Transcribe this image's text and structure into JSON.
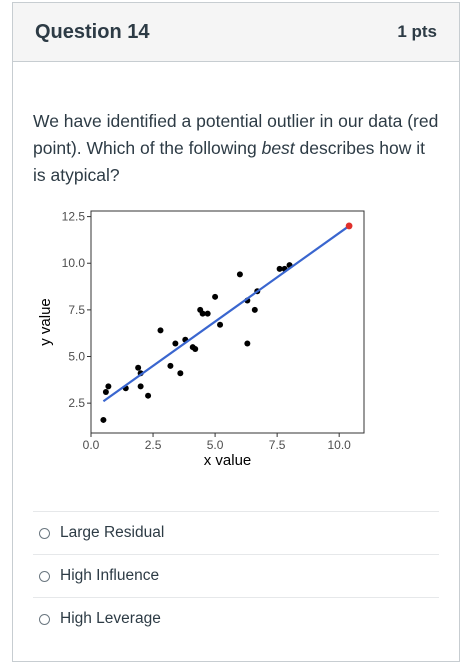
{
  "question": {
    "title": "Question 14",
    "points": "1 pts",
    "text_before": "We have identified a potential outlier in our data (red point). Which of the following ",
    "text_emphasis": "best",
    "text_after": " describes how it is atypical?"
  },
  "answers": [
    {
      "label": "Large Residual"
    },
    {
      "label": "High Influence"
    },
    {
      "label": "High Leverage"
    }
  ],
  "chart_data": {
    "type": "scatter",
    "xlabel": "x value",
    "ylabel": "y value",
    "xlim": [
      0,
      11
    ],
    "ylim": [
      0.9,
      12.8
    ],
    "xticks": [
      "0.0",
      "2.5",
      "5.0",
      "7.5",
      "10.0"
    ],
    "xtick_values": [
      0,
      2.5,
      5,
      7.5,
      10
    ],
    "yticks": [
      "2.5",
      "5.0",
      "7.5",
      "10.0",
      "12.5"
    ],
    "ytick_values": [
      2.5,
      5,
      7.5,
      10,
      12.5
    ],
    "grid": false,
    "points": [
      {
        "x": 0.5,
        "y": 1.6
      },
      {
        "x": 0.6,
        "y": 3.1
      },
      {
        "x": 0.7,
        "y": 3.4
      },
      {
        "x": 1.4,
        "y": 3.3
      },
      {
        "x": 1.9,
        "y": 4.4
      },
      {
        "x": 2.0,
        "y": 3.4
      },
      {
        "x": 2.0,
        "y": 4.1
      },
      {
        "x": 2.3,
        "y": 2.9
      },
      {
        "x": 2.8,
        "y": 6.4
      },
      {
        "x": 3.2,
        "y": 4.5
      },
      {
        "x": 3.4,
        "y": 5.7
      },
      {
        "x": 3.6,
        "y": 4.1
      },
      {
        "x": 3.8,
        "y": 5.9
      },
      {
        "x": 4.1,
        "y": 5.5
      },
      {
        "x": 4.2,
        "y": 5.4
      },
      {
        "x": 4.4,
        "y": 7.5
      },
      {
        "x": 4.5,
        "y": 7.3
      },
      {
        "x": 4.7,
        "y": 7.3
      },
      {
        "x": 5.0,
        "y": 8.2
      },
      {
        "x": 5.2,
        "y": 6.7
      },
      {
        "x": 6.0,
        "y": 9.4
      },
      {
        "x": 6.3,
        "y": 8.0
      },
      {
        "x": 6.3,
        "y": 5.7
      },
      {
        "x": 6.6,
        "y": 7.5
      },
      {
        "x": 6.7,
        "y": 8.5
      },
      {
        "x": 7.6,
        "y": 9.7
      },
      {
        "x": 7.8,
        "y": 9.7
      },
      {
        "x": 8.0,
        "y": 9.9
      }
    ],
    "outlier": {
      "x": 10.4,
      "y": 12.0,
      "color": "#e0302b"
    },
    "fit_line": {
      "x": [
        0.5,
        10.4
      ],
      "y": [
        2.6,
        12.0
      ],
      "color": "#3a66cf"
    },
    "point_color": "#000000"
  }
}
